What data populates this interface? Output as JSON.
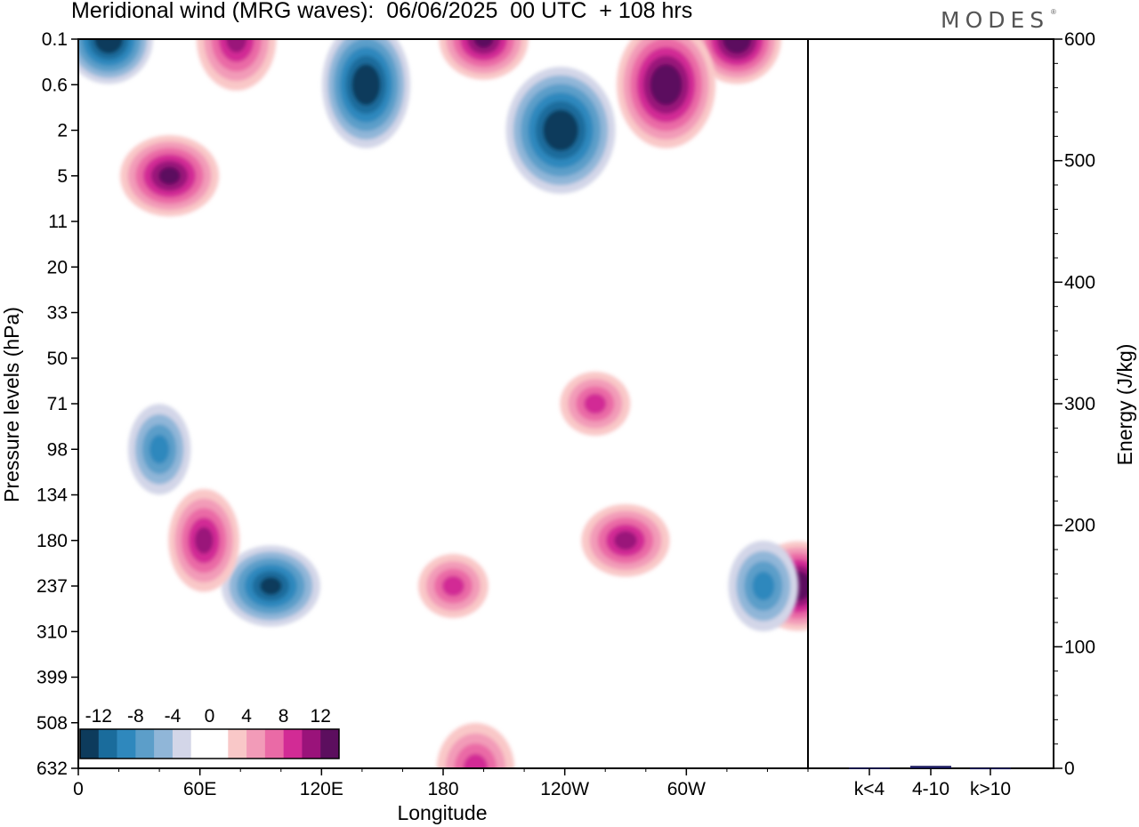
{
  "header": {
    "title": "Meridional wind (MRG waves):  06/06/2025  00 UTC  + 108 hrs",
    "logo": "MODES",
    "logo_mark": "®"
  },
  "chart_data": [
    {
      "type": "heatmap",
      "title": "Meridional wind (MRG waves):  06/06/2025  00 UTC  + 108 hrs",
      "xlabel": "Longitude",
      "ylabel": "Pressure levels (hPa)",
      "x_ticks": [
        "0",
        "60E",
        "120E",
        "180",
        "120W",
        "60W"
      ],
      "x_tick_values": [
        0,
        60,
        120,
        180,
        240,
        300
      ],
      "xlim": [
        0,
        360
      ],
      "y_ticks": [
        "0.1",
        "0.6",
        "2",
        "5",
        "11",
        "20",
        "33",
        "50",
        "71",
        "98",
        "134",
        "180",
        "237",
        "310",
        "399",
        "508",
        "632"
      ],
      "y_scale": "categorical pressure levels, top = 0.1 hPa",
      "colorbar": {
        "labels": [
          "-12",
          "-8",
          "-4",
          "0",
          "4",
          "8",
          "12"
        ],
        "levels": [
          -14,
          -12,
          -10,
          -8,
          -6,
          -4,
          -2,
          2,
          4,
          6,
          8,
          10,
          12,
          14
        ],
        "colors": [
          "#0d3b5c",
          "#1a6c9c",
          "#2f88bd",
          "#5c9ec9",
          "#90b6d8",
          "#d3d6e8",
          "#ffffff",
          "#ffffff",
          "#f9c8c8",
          "#f29bb8",
          "#ea6aa6",
          "#d22b95",
          "#9a137a",
          "#5c0e5e"
        ],
        "placement": "bottom-left"
      },
      "features": [
        {
          "lon": 15,
          "level": "0.1",
          "value": -14
        },
        {
          "lon": 78,
          "level": "0.1",
          "value": 10
        },
        {
          "lon": 45,
          "level": "5",
          "value": 12
        },
        {
          "lon": 142,
          "level": "0.6",
          "value": -14
        },
        {
          "lon": 200,
          "level": "0.1",
          "value": 12
        },
        {
          "lon": 238,
          "level": "2",
          "value": -14
        },
        {
          "lon": 325,
          "level": "0.1",
          "value": 14
        },
        {
          "lon": 290,
          "level": "0.6",
          "value": 14
        },
        {
          "lon": 95,
          "level": "237",
          "value": -12
        },
        {
          "lon": 62,
          "level": "180",
          "value": 10
        },
        {
          "lon": 185,
          "level": "237",
          "value": 8
        },
        {
          "lon": 196,
          "level": "632",
          "value": 8
        },
        {
          "lon": 355,
          "level": "237",
          "value": 14
        },
        {
          "lon": 338,
          "level": "237",
          "value": -8
        },
        {
          "lon": 270,
          "level": "180",
          "value": 10
        },
        {
          "lon": 40,
          "level": "98",
          "value": -8
        },
        {
          "lon": 255,
          "level": "71",
          "value": 8
        }
      ]
    },
    {
      "type": "bar",
      "ylabel": "Energy (J/kg)",
      "categories": [
        "k<4",
        "4-10",
        "k>10"
      ],
      "values": [
        0.5,
        2,
        0.3
      ],
      "ylim": [
        0,
        600
      ],
      "y_ticks": [
        "0",
        "100",
        "200",
        "300",
        "400",
        "500",
        "600"
      ],
      "bar_color": "#1a1a5e"
    }
  ]
}
